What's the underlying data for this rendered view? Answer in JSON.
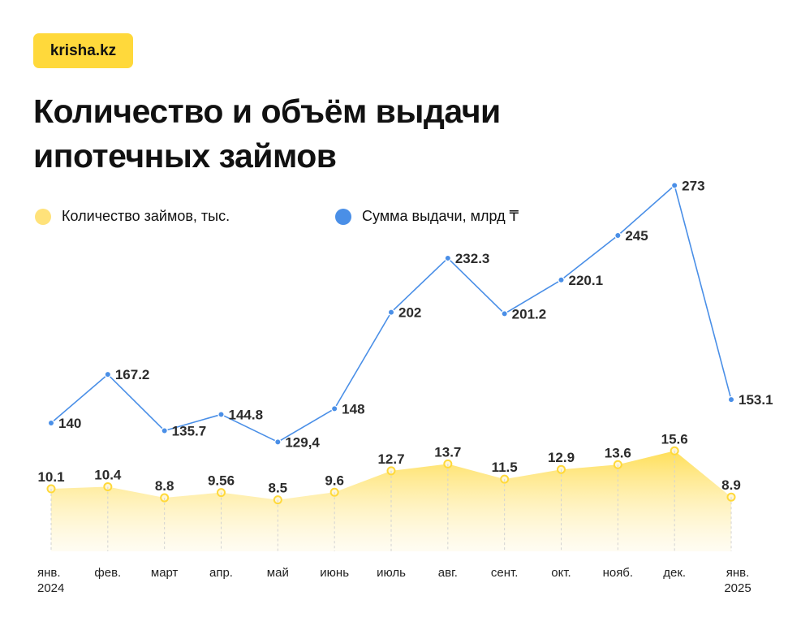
{
  "brand": {
    "logo_text": "krisha.kz",
    "accent": "#FFD93B"
  },
  "title": "Количество и объём выдачи ипотечных займов",
  "legend": {
    "count_label": "Количество займов, тыс.",
    "sum_label": "Сумма выдачи, млрд ₸"
  },
  "chart_data": {
    "type": "line",
    "categories": [
      [
        "янв.",
        "2024"
      ],
      [
        "фев."
      ],
      [
        "март"
      ],
      [
        "апр."
      ],
      [
        "май"
      ],
      [
        "июнь"
      ],
      [
        "июль"
      ],
      [
        "авг."
      ],
      [
        "сент."
      ],
      [
        "окт."
      ],
      [
        "нояб."
      ],
      [
        "дек."
      ],
      [
        "янв.",
        "2025"
      ]
    ],
    "series": [
      {
        "name": "Сумма выдачи, млрд ₸",
        "kind": "line",
        "color": "#4A8FE7",
        "values": [
          140,
          167.2,
          135.7,
          144.8,
          129.4,
          148,
          202,
          232.3,
          201.2,
          220.1,
          245,
          273,
          153.1
        ],
        "labels": [
          "140",
          "167.2",
          "135.7",
          "144.8",
          "129,4",
          "148",
          "202",
          "232.3",
          "201.2",
          "220.1",
          "245",
          "273",
          "153.1"
        ]
      },
      {
        "name": "Количество займов, тыс.",
        "kind": "area",
        "color": "#FFD93B",
        "values": [
          10.1,
          10.4,
          8.8,
          9.56,
          8.5,
          9.6,
          12.7,
          13.7,
          11.5,
          12.9,
          13.6,
          15.6,
          8.9
        ],
        "labels": [
          "10.1",
          "10.4",
          "8.8",
          "9.56",
          "8.5",
          "9.6",
          "12.7",
          "13.7",
          "11.5",
          "12.9",
          "13.6",
          "15.6",
          "8.9"
        ]
      }
    ],
    "grid": false,
    "legend_position": "top-left"
  }
}
